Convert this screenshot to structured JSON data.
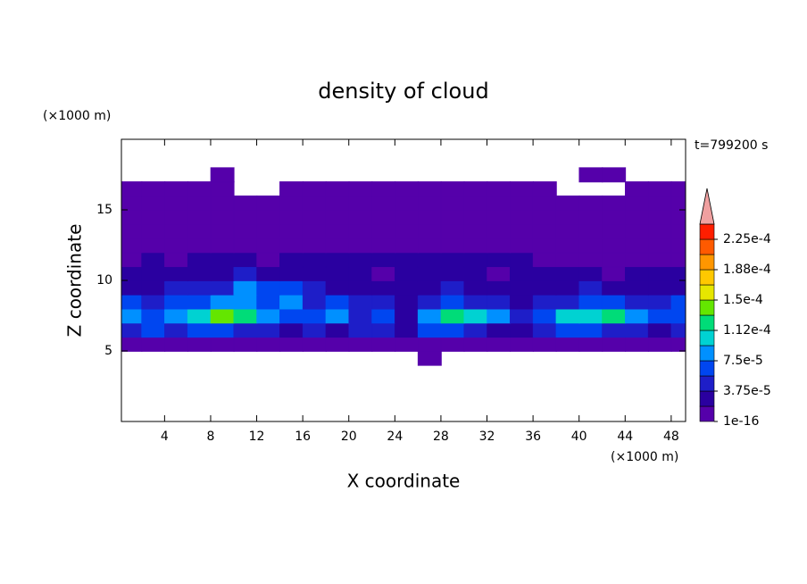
{
  "chart_data": {
    "type": "contour",
    "title": "density of cloud",
    "xlabel": "X coordinate",
    "ylabel": "Z coordinate",
    "x_unit": "(×1000 m)",
    "y_unit": "(×1000 m)",
    "annotation": "t=799200 s",
    "xlim": [
      0.25,
      49.25
    ],
    "ylim": [
      0,
      20
    ],
    "xticks": [
      4,
      8,
      12,
      16,
      20,
      24,
      28,
      32,
      36,
      40,
      44,
      48
    ],
    "yticks": [
      5,
      10,
      15
    ],
    "x": [
      1,
      3,
      5,
      7,
      9,
      11,
      13,
      15,
      17,
      19,
      21,
      23,
      25,
      27,
      29,
      31,
      33,
      35,
      37,
      39,
      41,
      43,
      45,
      47,
      49
    ],
    "y": [
      4.5,
      5.5,
      6.5,
      7.5,
      8.5,
      9.5,
      10.5,
      11.5,
      12.5,
      13.5,
      14.5,
      15.5,
      16.5,
      17.5
    ],
    "z": [
      [
        null,
        null,
        null,
        null,
        null,
        null,
        null,
        null,
        null,
        null,
        null,
        null,
        null,
        1e-06,
        null,
        null,
        null,
        null,
        null,
        null,
        null,
        null,
        null,
        null,
        null
      ],
      [
        1e-06,
        1e-06,
        1e-06,
        1e-06,
        1e-06,
        1e-06,
        1e-06,
        1e-06,
        1e-06,
        1e-06,
        1e-06,
        1e-06,
        1e-06,
        1e-06,
        1e-06,
        1e-06,
        1e-06,
        1e-06,
        1e-06,
        1e-06,
        1e-06,
        1e-06,
        1e-06,
        1e-06,
        1e-06
      ],
      [
        4e-05,
        6e-05,
        4e-05,
        6e-05,
        6e-05,
        4e-05,
        4e-05,
        2.5e-05,
        4e-05,
        2.5e-05,
        4e-05,
        4e-05,
        2.5e-05,
        6e-05,
        6e-05,
        4e-05,
        2.5e-05,
        2.5e-05,
        4e-05,
        6e-05,
        6e-05,
        4e-05,
        4e-05,
        2.5e-05,
        4e-05
      ],
      [
        8e-05,
        6e-05,
        8e-05,
        0.0001,
        0.00014,
        0.00012,
        8e-05,
        6e-05,
        6e-05,
        8e-05,
        4e-05,
        6e-05,
        2.5e-05,
        8e-05,
        0.00012,
        0.0001,
        8e-05,
        4e-05,
        6e-05,
        0.0001,
        0.0001,
        0.00012,
        8e-05,
        6e-05,
        6e-05
      ],
      [
        6e-05,
        4e-05,
        6e-05,
        6e-05,
        8e-05,
        8e-05,
        6e-05,
        8e-05,
        4e-05,
        6e-05,
        4e-05,
        4e-05,
        2.5e-05,
        4e-05,
        6e-05,
        4e-05,
        4e-05,
        2.5e-05,
        4e-05,
        4e-05,
        6e-05,
        6e-05,
        4e-05,
        4e-05,
        6e-05
      ],
      [
        2.5e-05,
        2.5e-05,
        4e-05,
        4e-05,
        4e-05,
        8e-05,
        6e-05,
        6e-05,
        4e-05,
        2.5e-05,
        2.5e-05,
        2.5e-05,
        2.5e-05,
        2.5e-05,
        4e-05,
        2.5e-05,
        2.5e-05,
        2.5e-05,
        2.5e-05,
        2.5e-05,
        4e-05,
        2.5e-05,
        2.5e-05,
        2.5e-05,
        2.5e-05
      ],
      [
        2.5e-05,
        2.5e-05,
        2.5e-05,
        2.5e-05,
        2.5e-05,
        4e-05,
        2.5e-05,
        2.5e-05,
        2.5e-05,
        2.5e-05,
        2.5e-05,
        1e-06,
        2.5e-05,
        2.5e-05,
        2.5e-05,
        2.5e-05,
        1e-06,
        2.5e-05,
        2.5e-05,
        2.5e-05,
        2.5e-05,
        1e-06,
        2.5e-05,
        2.5e-05,
        2.5e-05
      ],
      [
        1e-06,
        2.5e-05,
        1e-06,
        2.5e-05,
        2.5e-05,
        2.5e-05,
        1e-06,
        2.5e-05,
        2.5e-05,
        2.5e-05,
        2.5e-05,
        2.5e-05,
        2.5e-05,
        2.5e-05,
        2.5e-05,
        2.5e-05,
        2.5e-05,
        2.5e-05,
        1e-06,
        1e-06,
        1e-06,
        1e-06,
        1e-06,
        1e-06,
        1e-06
      ],
      [
        1e-06,
        1e-06,
        1e-06,
        1e-06,
        1e-06,
        1e-06,
        1e-06,
        1e-06,
        1e-06,
        1e-06,
        1e-06,
        1e-06,
        1e-06,
        1e-06,
        1e-06,
        1e-06,
        1e-06,
        1e-06,
        1e-06,
        1e-06,
        1e-06,
        1e-06,
        1e-06,
        1e-06,
        1e-06
      ],
      [
        1e-06,
        1e-06,
        1e-06,
        1e-06,
        1e-06,
        1e-06,
        1e-06,
        1e-06,
        1e-06,
        1e-06,
        1e-06,
        1e-06,
        1e-06,
        1e-06,
        1e-06,
        1e-06,
        1e-06,
        1e-06,
        1e-06,
        1e-06,
        1e-06,
        1e-06,
        1e-06,
        1e-06,
        1e-06
      ],
      [
        1e-06,
        1e-06,
        1e-06,
        1e-06,
        1e-06,
        1e-06,
        1e-06,
        1e-06,
        1e-06,
        1e-06,
        1e-06,
        1e-06,
        1e-06,
        1e-06,
        1e-06,
        1e-06,
        1e-06,
        1e-06,
        1e-06,
        1e-06,
        1e-06,
        1e-06,
        1e-06,
        1e-06,
        1e-06
      ],
      [
        1e-06,
        1e-06,
        1e-06,
        1e-06,
        1e-06,
        1e-06,
        1e-06,
        1e-06,
        1e-06,
        1e-06,
        1e-06,
        1e-06,
        1e-06,
        1e-06,
        1e-06,
        1e-06,
        1e-06,
        1e-06,
        1e-06,
        1e-06,
        1e-06,
        1e-06,
        1e-06,
        1e-06,
        1e-06
      ],
      [
        1e-06,
        1e-06,
        1e-06,
        1e-06,
        1e-06,
        null,
        null,
        1e-06,
        1e-06,
        1e-06,
        1e-06,
        1e-06,
        1e-06,
        1e-06,
        1e-06,
        1e-06,
        1e-06,
        1e-06,
        1e-06,
        null,
        null,
        null,
        1e-06,
        1e-06,
        1e-06
      ],
      [
        null,
        null,
        null,
        null,
        1e-06,
        null,
        null,
        null,
        null,
        null,
        null,
        null,
        null,
        null,
        null,
        null,
        null,
        null,
        null,
        null,
        1e-06,
        1e-06,
        null,
        null,
        null
      ]
    ],
    "colorbar": {
      "levels": [
        1e-16,
        1.875e-05,
        3.75e-05,
        5.625e-05,
        7.5e-05,
        9.375e-05,
        0.0001125,
        0.00013125,
        0.00015,
        0.00016875,
        0.0001875,
        0.00020625,
        0.000225,
        0.00024375
      ],
      "colors": [
        "#5500aa",
        "#2a00a0",
        "#1e1ec8",
        "#0046f0",
        "#0090ff",
        "#00d2d2",
        "#00dc78",
        "#64e600",
        "#e6e600",
        "#ffc800",
        "#ff9600",
        "#ff5a00",
        "#ff1e00"
      ],
      "over_color": "#f0a0a0",
      "ticks": [
        {
          "value": 1e-16,
          "label": "1e-16"
        },
        {
          "value": 3.75e-05,
          "label": "3.75e-5"
        },
        {
          "value": 7.5e-05,
          "label": "7.5e-5"
        },
        {
          "value": 0.0001125,
          "label": "1.12e-4"
        },
        {
          "value": 0.00015,
          "label": "1.5e-4"
        },
        {
          "value": 0.0001875,
          "label": "1.88e-4"
        },
        {
          "value": 0.000225,
          "label": "2.25e-4"
        }
      ]
    }
  }
}
